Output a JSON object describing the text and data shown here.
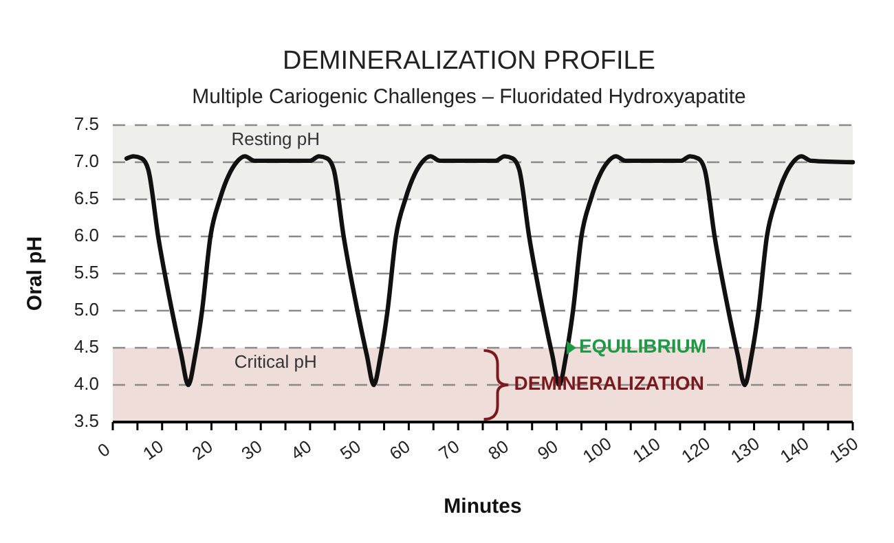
{
  "chart_data": {
    "type": "line",
    "title": "DEMINERALIZATION PROFILE",
    "subtitle": "Multiple Cariogenic Challenges – Fluoridated Hydroxyapatite",
    "xlabel": "Minutes",
    "ylabel": "Oral pH",
    "xlim": [
      0,
      150
    ],
    "ylim": [
      3.5,
      7.5
    ],
    "xticks": [
      0,
      {
        "value": 5,
        "label": null
      },
      10,
      {
        "value": 15,
        "label": null
      },
      20,
      {
        "value": 25,
        "label": null
      },
      30,
      {
        "value": 35,
        "label": null
      },
      40,
      {
        "value": 45,
        "label": null
      },
      50,
      {
        "value": 55,
        "label": null
      },
      60,
      {
        "value": 65,
        "label": null
      },
      70,
      {
        "value": 75,
        "label": null
      },
      80,
      {
        "value": 85,
        "label": null
      },
      90,
      {
        "value": 95,
        "label": null
      },
      100,
      {
        "value": 105,
        "label": null
      },
      110,
      {
        "value": 115,
        "label": null
      },
      120,
      {
        "value": 125,
        "label": null
      },
      130,
      {
        "value": 135,
        "label": null
      },
      140,
      {
        "value": 145,
        "label": null
      },
      150
    ],
    "yticks": [
      {
        "value": 3.5,
        "label": "3.5"
      },
      {
        "value": 4,
        "label": "4.0"
      },
      {
        "value": 4.5,
        "label": "4.5"
      },
      {
        "value": 5,
        "label": "5.0"
      },
      {
        "value": 5.5,
        "label": "5.5"
      },
      {
        "value": 6,
        "label": "6.0"
      },
      {
        "value": 6.5,
        "label": "6.5"
      },
      {
        "value": 7,
        "label": "7.0"
      },
      {
        "value": 7.5,
        "label": "7.5"
      }
    ],
    "grid": "y",
    "line_style": "solid",
    "marker": "none",
    "bands": [
      {
        "axis": "y",
        "from": 6.5,
        "to": 7.5,
        "label": "Resting pH",
        "color": "#eeeeea"
      },
      {
        "axis": "y",
        "from": 3.5,
        "to": 4.5,
        "label": "Critical pH",
        "color": "#eeddd9"
      }
    ],
    "annotations": [
      {
        "text": "EQUILIBRIUM",
        "x": 92,
        "y": 4.5
      },
      "DEMINERALIZATION"
    ],
    "series": [
      {
        "color": "#111111",
        "x": [
          2.8,
          4.2,
          5.9,
          7.2,
          9.2,
          12.0,
          13.9,
          15.3,
          16.7,
          18.1,
          19.8,
          21.7,
          25.1,
          26.8,
          28.7,
          40.0,
          41.8,
          43.5,
          44.8,
          46.8,
          49.6,
          51.5,
          52.9,
          54.3,
          55.7,
          57.4,
          59.3,
          62.7,
          64.4,
          66.3,
          77.6,
          79.4,
          81.1,
          82.4,
          84.4,
          87.2,
          89.1,
          90.5,
          91.9,
          93.3,
          95.0,
          96.9,
          100.3,
          102.0,
          103.9,
          115.2,
          117.0,
          118.7,
          120.0,
          122.0,
          124.8,
          126.7,
          128.1,
          129.5,
          130.9,
          132.6,
          134.5,
          137.9,
          139.6,
          141.5,
          150.0
        ],
        "values": [
          7.05,
          7.08,
          7.05,
          6.9,
          6.0,
          5.0,
          4.4,
          4.0,
          4.4,
          5.0,
          6.0,
          6.5,
          7.0,
          7.08,
          7.02,
          7.02,
          7.08,
          7.05,
          6.9,
          6.0,
          5.0,
          4.4,
          4.0,
          4.4,
          5.0,
          6.0,
          6.5,
          7.0,
          7.08,
          7.02,
          7.02,
          7.08,
          7.05,
          6.9,
          6.0,
          5.0,
          4.4,
          4.0,
          4.4,
          5.0,
          6.0,
          6.5,
          7.0,
          7.08,
          7.02,
          7.02,
          7.08,
          7.05,
          6.9,
          6.0,
          5.0,
          4.4,
          4.0,
          4.4,
          5.0,
          6.0,
          6.5,
          7.0,
          7.08,
          7.02,
          7.0
        ]
      }
    ]
  }
}
